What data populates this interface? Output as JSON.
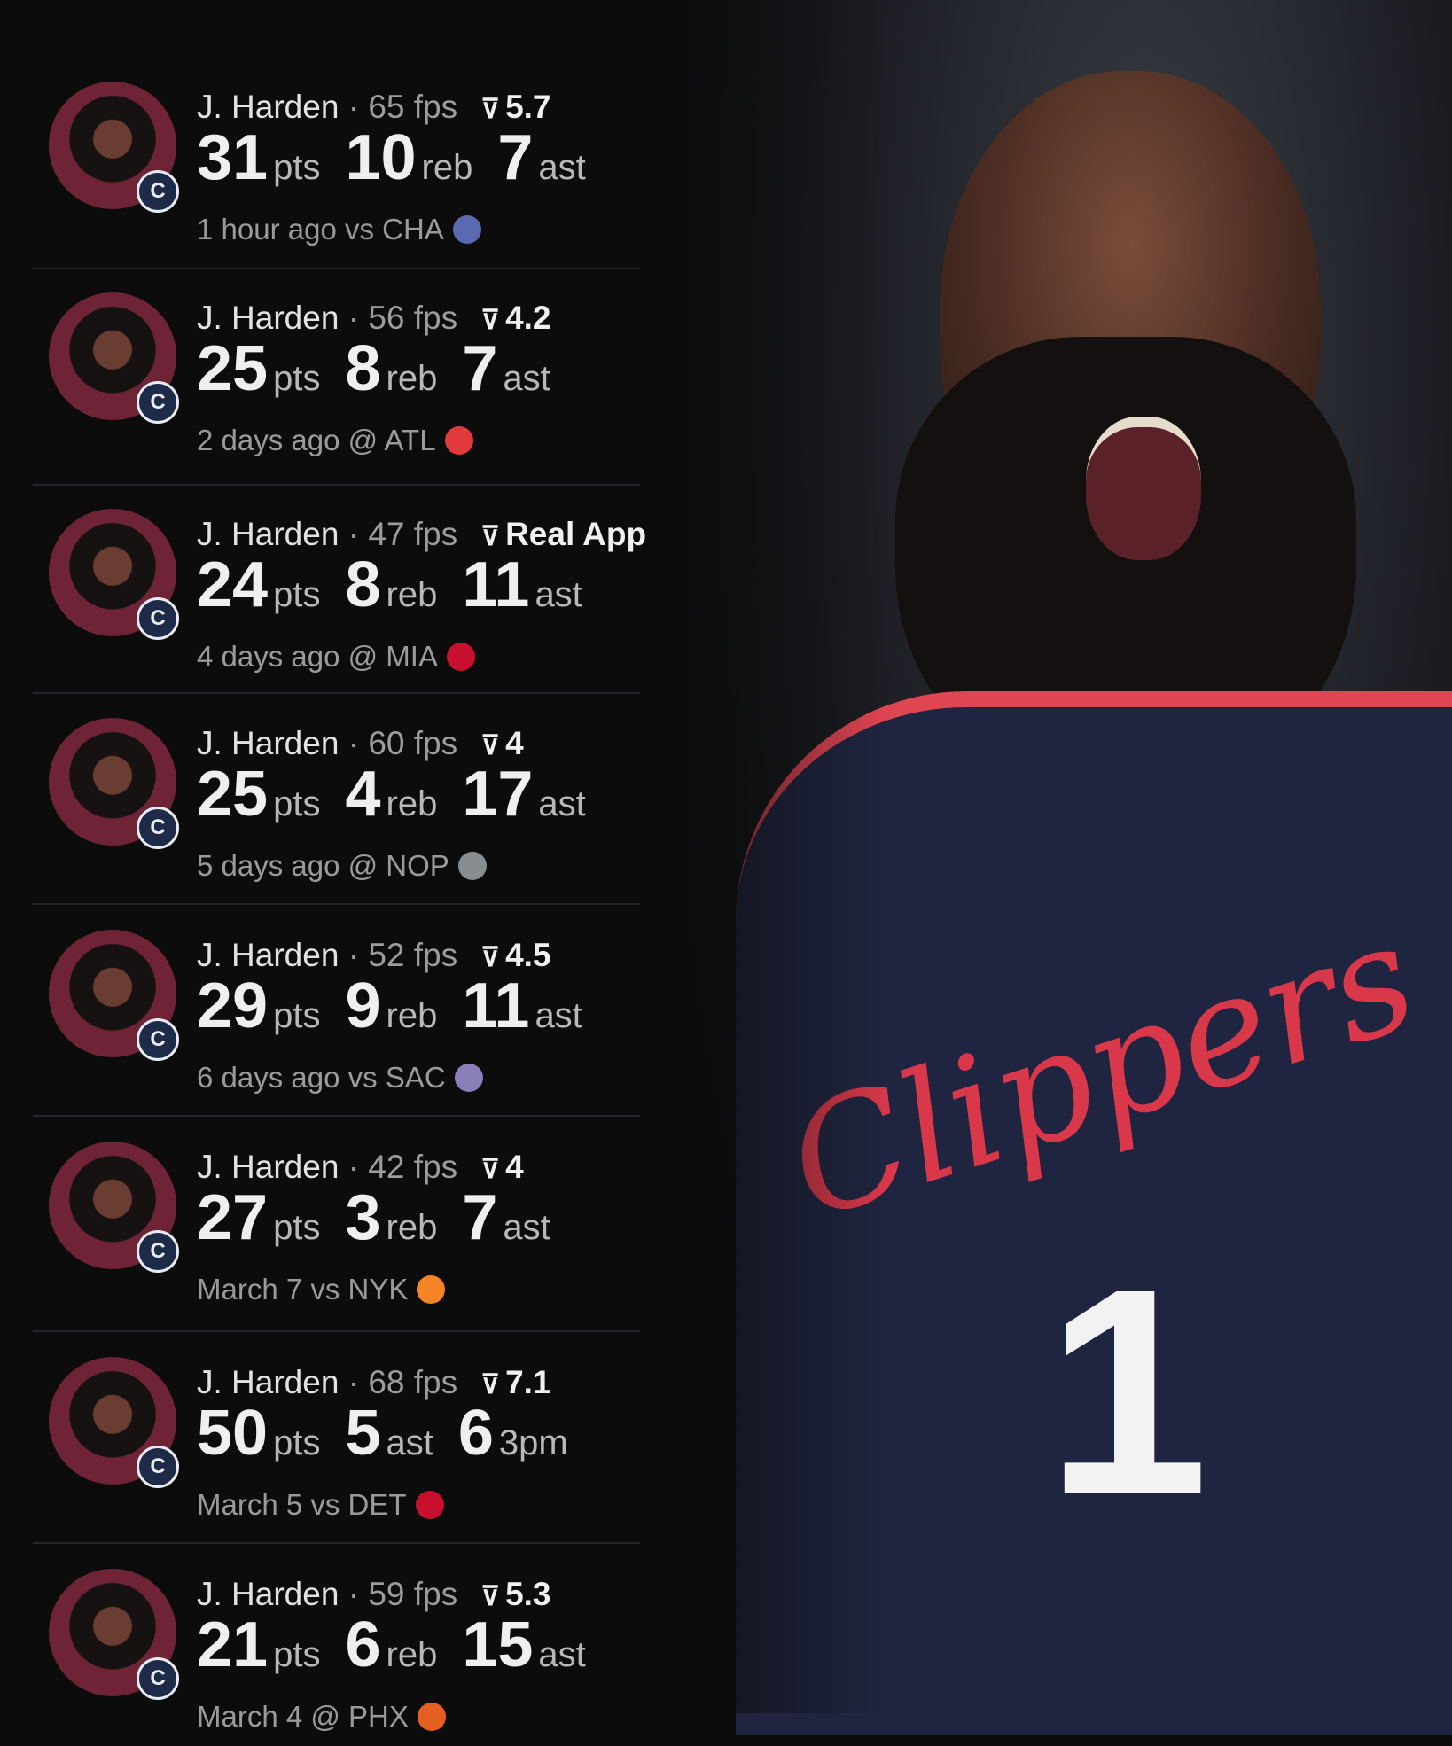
{
  "games": [
    {
      "player": "J. Harden",
      "fps": "65 fps",
      "rating": "5.7",
      "stats": [
        [
          "31",
          "pts"
        ],
        [
          "10",
          "reb"
        ],
        [
          "7",
          "ast"
        ]
      ],
      "when": "1 hour ago vs CHA",
      "team": "CHA",
      "team_color": "#5b6ab0"
    },
    {
      "player": "J. Harden",
      "fps": "56 fps",
      "rating": "4.2",
      "stats": [
        [
          "25",
          "pts"
        ],
        [
          "8",
          "reb"
        ],
        [
          "7",
          "ast"
        ]
      ],
      "when": "2 days ago @ ATL",
      "team": "ATL",
      "team_color": "#e03a3e"
    },
    {
      "player": "J. Harden",
      "fps": "47 fps",
      "rating": "Real App",
      "stats": [
        [
          "24",
          "pts"
        ],
        [
          "8",
          "reb"
        ],
        [
          "11",
          "ast"
        ]
      ],
      "when": "4 days ago @ MIA",
      "team": "MIA",
      "team_color": "#c8102e"
    },
    {
      "player": "J. Harden",
      "fps": "60 fps",
      "rating": "4",
      "stats": [
        [
          "25",
          "pts"
        ],
        [
          "4",
          "reb"
        ],
        [
          "17",
          "ast"
        ]
      ],
      "when": "5 days ago @ NOP",
      "team": "NOP",
      "team_color": "#8a8d8f"
    },
    {
      "player": "J. Harden",
      "fps": "52 fps",
      "rating": "4.5",
      "stats": [
        [
          "29",
          "pts"
        ],
        [
          "9",
          "reb"
        ],
        [
          "11",
          "ast"
        ]
      ],
      "when": "6 days ago vs SAC",
      "team": "SAC",
      "team_color": "#8a7fb8"
    },
    {
      "player": "J. Harden",
      "fps": "42 fps",
      "rating": "4",
      "stats": [
        [
          "27",
          "pts"
        ],
        [
          "3",
          "reb"
        ],
        [
          "7",
          "ast"
        ]
      ],
      "when": "March 7 vs NYK",
      "team": "NYK",
      "team_color": "#f58426"
    },
    {
      "player": "J. Harden",
      "fps": "68 fps",
      "rating": "7.1",
      "stats": [
        [
          "50",
          "pts"
        ],
        [
          "5",
          "ast"
        ],
        [
          "6",
          "3pm"
        ]
      ],
      "when": "March 5 vs DET",
      "team": "DET",
      "team_color": "#c8102e"
    },
    {
      "player": "J. Harden",
      "fps": "59 fps",
      "rating": "5.3",
      "stats": [
        [
          "21",
          "pts"
        ],
        [
          "6",
          "reb"
        ],
        [
          "15",
          "ast"
        ]
      ],
      "when": "March 4 @ PHX",
      "team": "PHX",
      "team_color": "#e56020"
    }
  ],
  "photo": {
    "jersey_text": "Clippers",
    "jersey_number": "1"
  },
  "colors": {
    "background": "#0c0c0d",
    "text": "#e2e2e2",
    "muted": "#9a9a9a"
  }
}
